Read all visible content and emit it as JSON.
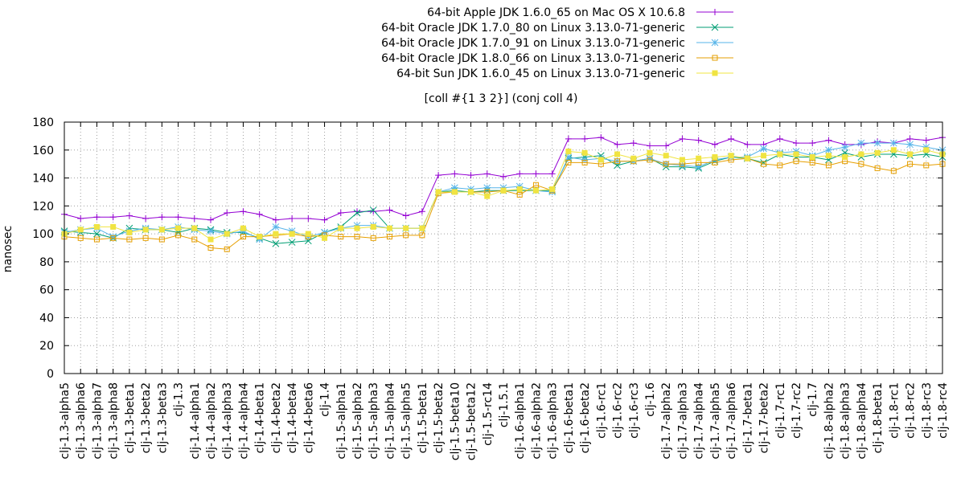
{
  "chart_data": {
    "type": "line",
    "title": "[coll #{1 3 2}] (conj coll 4)",
    "xlabel": "",
    "ylabel": "nanosec",
    "ylim": [
      0,
      180
    ],
    "yticks": [
      0,
      20,
      40,
      60,
      80,
      100,
      120,
      140,
      160,
      180
    ],
    "grid": true,
    "legend_position": "top-right",
    "categories": [
      "clj-1.3-alpha5",
      "clj-1.3-alpha6",
      "clj-1.3-alpha7",
      "clj-1.3-alpha8",
      "clj-1.3-beta1",
      "clj-1.3-beta2",
      "clj-1.3-beta3",
      "clj-1.3",
      "clj-1.4-alpha1",
      "clj-1.4-alpha2",
      "clj-1.4-alpha3",
      "clj-1.4-alpha4",
      "clj-1.4-beta1",
      "clj-1.4-beta2",
      "clj-1.4-beta4",
      "clj-1.4-beta6",
      "clj-1.4",
      "clj-1.5-alpha1",
      "clj-1.5-alpha2",
      "clj-1.5-alpha3",
      "clj-1.5-alpha4",
      "clj-1.5-alpha5",
      "clj-1.5-beta1",
      "clj-1.5-beta2",
      "clj-1.5-beta10",
      "clj-1.5-beta12",
      "clj-1.5-rc14",
      "clj-1.5.1",
      "clj-1.6-alpha1",
      "clj-1.6-alpha2",
      "clj-1.6-alpha3",
      "clj-1.6-beta1",
      "clj-1.6-beta2",
      "clj-1.6-rc1",
      "clj-1.6-rc2",
      "clj-1.6-rc3",
      "clj-1.6",
      "clj-1.7-alpha2",
      "clj-1.7-alpha3",
      "clj-1.7-alpha4",
      "clj-1.7-alpha5",
      "clj-1.7-alpha6",
      "clj-1.7-beta1",
      "clj-1.7-beta2",
      "clj-1.7-rc1",
      "clj-1.7-rc2",
      "clj-1.7",
      "clj-1.8-alpha2",
      "clj-1.8-alpha3",
      "clj-1.8-alpha4",
      "clj-1.8-beta1",
      "clj-1.8-rc1",
      "clj-1.8-rc2",
      "clj-1.8-rc3",
      "clj-1.8-rc4"
    ],
    "visible_tick_labels": [
      "clj-1.3-alpha5",
      "clj-1.3-alpha6",
      "clj-1.3-alpha7",
      "clj-1.3-alpha8",
      "clj-1.3-beta1",
      "clj-1.3-beta2",
      "clj-1.3-beta3",
      "clj-1.3",
      "clj-1.4-alpha1",
      "clj-1.4-alpha2",
      "clj-1.4-alpha3",
      "clj-1.4-alpha4",
      "clj-1.4-beta1",
      "clj-1.4-beta2",
      "clj-1.4-beta4",
      "clj-1.4-beta6",
      "clj-1.4",
      "clj-1.5-alpha1",
      "clj-1.5-alpha2",
      "clj-1.5-alpha3",
      "clj-1.5-alpha4",
      "clj-1.5-alpha5",
      "clj-1.5-beta1",
      "clj-1.5-beta2",
      "clj-1.5-beta10",
      "clj-1.5-beta12",
      "clj-1.5-rc14",
      "clj-1.5.1",
      "clj-1.6-alpha1",
      "clj-1.6-alpha2",
      "clj-1.6-alpha3",
      "clj-1.6-beta1",
      "clj-1.6-beta2",
      "clj-1.6-rc1",
      "clj-1.6-rc2",
      "clj-1.6-rc3",
      "clj-1.6",
      "clj-1.7-alpha2",
      "clj-1.7-alpha3",
      "clj-1.7-alpha4",
      "clj-1.7-alpha5",
      "clj-1.7-alpha6",
      "clj-1.7-beta1",
      "clj-1.7-beta2",
      "clj-1.7-rc1",
      "clj-1.7-rc2",
      "clj-1.7",
      "clj-1.8-alpha2",
      "clj-1.8-alpha3",
      "clj-1.8-alpha4",
      "clj-1.8-beta1",
      "clj-1.8-rc1",
      "clj-1.8-rc2",
      "clj-1.8-rc3",
      "clj-1.8-rc4"
    ],
    "series": [
      {
        "name": "64-bit Apple JDK 1.6.0_65 on Mac OS X 10.6.8",
        "color": "#9400d3",
        "marker": "plus",
        "values": [
          114,
          111,
          112,
          112,
          113,
          111,
          112,
          112,
          111,
          110,
          115,
          116,
          114,
          110,
          111,
          111,
          110,
          115,
          116,
          116,
          117,
          113,
          116,
          142,
          143,
          142,
          143,
          141,
          143,
          143,
          143,
          168,
          168,
          169,
          164,
          165,
          163,
          163,
          168,
          167,
          164,
          168,
          164,
          164,
          168,
          165,
          165,
          167,
          164,
          164,
          166,
          165,
          168,
          167,
          169
        ]
      },
      {
        "name": "64-bit Oracle JDK 1.7.0_80 on Linux 3.13.0-71-generic",
        "color": "#009e73",
        "marker": "x",
        "values": [
          102,
          101,
          100,
          97,
          104,
          103,
          103,
          101,
          104,
          103,
          101,
          101,
          97,
          93,
          94,
          95,
          101,
          105,
          115,
          117,
          104,
          104,
          104,
          130,
          131,
          130,
          131,
          131,
          131,
          131,
          131,
          154,
          155,
          156,
          149,
          152,
          154,
          148,
          148,
          147,
          152,
          155,
          154,
          151,
          157,
          155,
          155,
          153,
          158,
          155,
          157,
          157,
          156,
          157,
          155
        ]
      },
      {
        "name": "64-bit Oracle JDK 1.7.0_91 on Linux 3.13.0-71-generic",
        "color": "#56b4e9",
        "marker": "star",
        "values": [
          101,
          103,
          104,
          98,
          102,
          104,
          103,
          105,
          103,
          102,
          100,
          102,
          96,
          105,
          102,
          98,
          101,
          104,
          106,
          106,
          104,
          104,
          104,
          130,
          133,
          132,
          133,
          133,
          134,
          131,
          130,
          155,
          153,
          154,
          152,
          152,
          154,
          150,
          149,
          148,
          153,
          155,
          155,
          161,
          158,
          159,
          156,
          160,
          162,
          165,
          165,
          165,
          164,
          162,
          160
        ]
      },
      {
        "name": "64-bit Oracle JDK 1.8.0_66 on Linux 3.13.0-71-generic",
        "color": "#e69f00",
        "marker": "square-open",
        "values": [
          98,
          97,
          96,
          97,
          96,
          97,
          96,
          99,
          96,
          90,
          89,
          98,
          98,
          99,
          100,
          98,
          99,
          98,
          98,
          97,
          98,
          99,
          99,
          129,
          130,
          130,
          130,
          131,
          128,
          135,
          131,
          151,
          151,
          150,
          152,
          152,
          153,
          150,
          150,
          151,
          151,
          153,
          154,
          150,
          149,
          152,
          151,
          149,
          152,
          150,
          147,
          145,
          150,
          149,
          150
        ]
      },
      {
        "name": "64-bit Sun JDK 1.6.0_45 on Linux 3.13.0-71-generic",
        "color": "#f0e442",
        "marker": "square-filled",
        "values": [
          100,
          103,
          105,
          105,
          101,
          103,
          103,
          104,
          104,
          96,
          100,
          104,
          98,
          100,
          100,
          100,
          97,
          104,
          104,
          105,
          104,
          104,
          104,
          130,
          130,
          130,
          127,
          131,
          132,
          131,
          132,
          159,
          158,
          153,
          157,
          154,
          158,
          156,
          153,
          154,
          155,
          156,
          154,
          156,
          157,
          157,
          155,
          156,
          155,
          157,
          158,
          160,
          157,
          160,
          157
        ]
      }
    ]
  }
}
